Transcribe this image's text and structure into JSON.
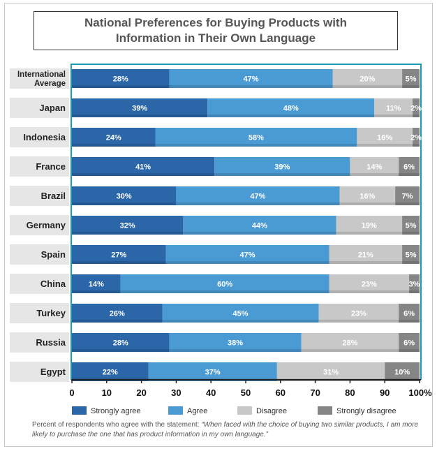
{
  "chart_data": {
    "type": "bar",
    "orientation": "horizontal",
    "stacked": true,
    "title": "National Preferences for Buying Products with\nInformation in Their Own Language",
    "categories": [
      "International Average",
      "Japan",
      "Indonesia",
      "France",
      "Brazil",
      "Germany",
      "Spain",
      "China",
      "Turkey",
      "Russia",
      "Egypt"
    ],
    "category_lines": [
      [
        "International",
        "Average"
      ],
      [
        "Japan"
      ],
      [
        "Indonesia"
      ],
      [
        "France"
      ],
      [
        "Brazil"
      ],
      [
        "Germany"
      ],
      [
        "Spain"
      ],
      [
        "China"
      ],
      [
        "Turkey"
      ],
      [
        "Russia"
      ],
      [
        "Egypt"
      ]
    ],
    "series": [
      {
        "name": "Strongly agree",
        "color": "#2a66a8",
        "values": [
          28,
          39,
          24,
          41,
          30,
          32,
          27,
          14,
          26,
          28,
          22
        ]
      },
      {
        "name": "Agree",
        "color": "#4a9ad4",
        "values": [
          47,
          48,
          58,
          39,
          47,
          44,
          47,
          60,
          45,
          38,
          37
        ]
      },
      {
        "name": "Disagree",
        "color": "#c8c8c8",
        "values": [
          20,
          11,
          16,
          14,
          16,
          19,
          21,
          23,
          23,
          28,
          31
        ]
      },
      {
        "name": "Strongly disagree",
        "color": "#858585",
        "values": [
          5,
          2,
          2,
          6,
          7,
          5,
          5,
          3,
          6,
          6,
          10
        ]
      }
    ],
    "xlim": [
      0,
      100
    ],
    "xticks": [
      "0",
      "10",
      "20",
      "30",
      "40",
      "50",
      "60",
      "70",
      "80",
      "90",
      "100%"
    ],
    "legend_position": "bottom",
    "axis_color": "#1a9bb5"
  },
  "footnote": {
    "prefix": "Percent of respondents who agree with the statement: ",
    "quote": "“When faced with the choice of buying two similar products, I am more likely to purchase the one that has product information in my own language.”"
  }
}
